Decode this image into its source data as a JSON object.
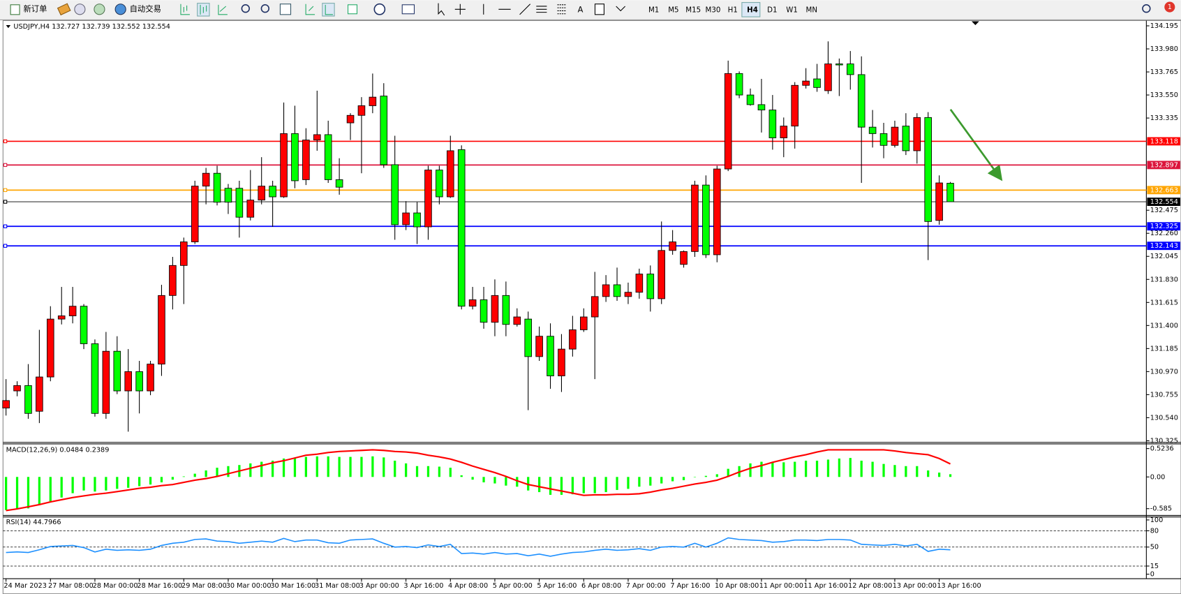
{
  "toolbar": {
    "new_order": "新订单",
    "auto_trading": "自动交易",
    "text_tool": "A",
    "timeframes": [
      "M1",
      "M5",
      "M15",
      "M30",
      "H1",
      "H4",
      "D1",
      "W1",
      "MN"
    ],
    "active_timeframe": 5,
    "notifications": "1"
  },
  "chart_data": [
    {
      "type": "candlestick",
      "title": "USDJPY,H4  132.727 132.739 132.552 132.554",
      "categories": [
        "24 Mar 2023",
        null,
        null,
        null,
        "27 Mar 08:00",
        null,
        null,
        null,
        "28 Mar 00:00",
        null,
        null,
        null,
        "28 Mar 16:00",
        null,
        null,
        null,
        "29 Mar 08:00",
        null,
        null,
        null,
        "30 Mar 00:00",
        null,
        null,
        null,
        "30 Mar 16:00",
        null,
        null,
        null,
        "31 Mar 08:00",
        null,
        null,
        null,
        "3 Apr 00:00",
        null,
        null,
        null,
        "3 Apr 16:00",
        null,
        null,
        null,
        "4 Apr 08:00",
        null,
        null,
        null,
        "5 Apr 00:00",
        null,
        null,
        null,
        "5 Apr 16:00",
        null,
        null,
        null,
        "6 Apr 08:00",
        null,
        null,
        null,
        "7 Apr 00:00",
        null,
        null,
        null,
        "7 Apr 16:00",
        null,
        null,
        null,
        "10 Apr 08:00",
        null,
        null,
        null,
        "11 Apr 00:00",
        null,
        null,
        null,
        "11 Apr 16:00",
        null,
        null,
        null,
        "12 Apr 08:00",
        null,
        null,
        null,
        "13 Apr 00:00",
        null,
        null,
        null,
        "13 Apr 16:00",
        null
      ],
      "open": [
        130.63,
        130.79,
        130.84,
        130.6,
        130.92,
        131.46,
        131.49,
        131.58,
        131.23,
        130.58,
        131.16,
        130.79,
        130.97,
        130.79,
        131.04,
        131.68,
        131.96,
        132.18,
        132.7,
        132.82,
        132.68,
        132.68,
        132.41,
        132.57,
        132.7,
        132.6,
        133.19,
        132.76,
        133.13,
        133.18,
        132.76,
        133.29,
        133.36,
        133.45,
        133.54,
        132.9,
        132.34,
        132.45,
        132.32,
        132.85,
        132.6,
        133.04,
        131.58,
        131.64,
        131.43,
        131.68,
        131.41,
        131.46,
        131.11,
        131.3,
        130.93,
        131.18,
        131.36,
        131.48,
        131.67,
        131.78,
        131.67,
        131.71,
        131.88,
        131.65,
        132.1,
        131.97,
        132.09,
        132.71,
        132.06,
        132.86,
        133.75,
        133.55,
        133.46,
        133.41,
        133.15,
        133.26,
        133.64,
        133.7,
        133.59,
        133.84,
        133.84,
        133.74,
        133.25,
        133.19,
        133.08,
        133.26,
        133.03,
        133.34,
        132.38,
        132.727
      ],
      "high": [
        130.9,
        130.88,
        131.04,
        131.36,
        131.58,
        131.76,
        131.76,
        131.6,
        131.27,
        131.34,
        131.3,
        131.18,
        131.07,
        131.07,
        131.78,
        132.04,
        132.22,
        132.75,
        132.87,
        132.89,
        132.72,
        132.75,
        132.85,
        132.97,
        132.75,
        133.48,
        133.45,
        133.24,
        133.59,
        133.31,
        132.96,
        133.38,
        133.53,
        133.75,
        133.66,
        133.17,
        132.56,
        132.55,
        132.89,
        132.89,
        133.17,
        133.08,
        131.76,
        131.76,
        131.83,
        131.81,
        131.56,
        131.53,
        131.39,
        131.42,
        131.32,
        131.49,
        131.56,
        131.9,
        131.87,
        131.94,
        131.8,
        131.93,
        131.96,
        132.37,
        132.29,
        132.1,
        132.75,
        132.8,
        132.89,
        133.87,
        133.77,
        133.61,
        133.7,
        133.55,
        133.34,
        133.67,
        133.8,
        133.84,
        134.05,
        133.89,
        133.96,
        133.91,
        133.41,
        133.29,
        133.31,
        133.38,
        133.38,
        133.39,
        132.8,
        132.739
      ],
      "low": [
        130.56,
        130.74,
        130.53,
        130.49,
        130.88,
        131.41,
        131.42,
        131.18,
        130.55,
        130.53,
        130.76,
        130.41,
        130.58,
        130.75,
        130.93,
        131.55,
        131.6,
        132.16,
        132.53,
        132.52,
        132.44,
        132.22,
        132.38,
        132.53,
        132.32,
        132.59,
        132.68,
        132.71,
        133.03,
        132.73,
        132.62,
        133.13,
        132.82,
        133.38,
        132.87,
        132.2,
        132.29,
        132.16,
        132.2,
        132.53,
        132.59,
        131.55,
        131.55,
        131.37,
        131.3,
        131.3,
        131.39,
        130.61,
        131.07,
        130.81,
        130.78,
        131.11,
        131.34,
        130.9,
        131.62,
        131.63,
        131.6,
        131.65,
        131.53,
        131.6,
        132.06,
        131.94,
        132.04,
        132.03,
        131.99,
        132.84,
        133.52,
        133.45,
        133.2,
        133.04,
        132.97,
        133.05,
        133.61,
        133.58,
        133.56,
        133.54,
        133.6,
        132.73,
        133.06,
        132.96,
        133.06,
        132.99,
        132.91,
        132.01,
        132.34,
        132.552
      ],
      "close": [
        130.7,
        130.84,
        130.58,
        130.92,
        131.46,
        131.49,
        131.58,
        131.23,
        130.58,
        131.16,
        130.79,
        130.97,
        130.79,
        131.04,
        131.68,
        131.96,
        132.18,
        132.7,
        132.82,
        132.55,
        132.55,
        132.41,
        132.57,
        132.7,
        132.6,
        133.19,
        132.75,
        133.13,
        133.18,
        132.76,
        132.69,
        133.36,
        133.45,
        133.53,
        132.9,
        132.34,
        132.45,
        132.32,
        132.85,
        132.6,
        133.03,
        131.58,
        131.64,
        131.43,
        131.68,
        131.41,
        131.48,
        131.11,
        131.3,
        130.93,
        131.18,
        131.36,
        131.48,
        131.67,
        131.78,
        131.67,
        131.71,
        131.88,
        131.65,
        132.1,
        132.18,
        132.09,
        132.71,
        132.06,
        132.86,
        133.75,
        133.55,
        133.46,
        133.41,
        133.15,
        133.26,
        133.64,
        133.68,
        133.62,
        133.84,
        133.83,
        133.74,
        133.25,
        133.19,
        133.08,
        133.25,
        133.03,
        133.34,
        132.37,
        132.73,
        132.554
      ],
      "up_color": "#ff0000",
      "down_color": "#00ff00",
      "ylim": [
        130.31,
        134.244
      ],
      "yticks": [
        134.195,
        {
          "value": 133.98,
          "label": "133.980"
        },
        133.765,
        {
          "value": 133.55,
          "label": "133.550"
        },
        133.335,
        132.475,
        {
          "value": 132.26,
          "label": "132.260"
        },
        132.045,
        {
          "value": 131.83,
          "label": "131.830"
        },
        131.615,
        {
          "value": 131.4,
          "label": "131.400"
        },
        131.185,
        {
          "value": 130.97,
          "label": "130.970"
        },
        130.755,
        {
          "value": 130.54,
          "label": "130.540"
        },
        130.325
      ],
      "hlines": [
        {
          "value": 133.118,
          "color": "#ff0000"
        },
        {
          "value": 132.897,
          "color": "#dc143c"
        },
        {
          "value": 132.663,
          "color": "#ffa500"
        },
        {
          "value": 132.325,
          "color": "#0000ff"
        },
        {
          "value": 132.143,
          "color": "#0000ff"
        }
      ],
      "last_price": {
        "value": 132.554,
        "color": "#000000"
      }
    },
    {
      "type": "macd",
      "title": "MACD(12,26,9) 0.0484 0.2389",
      "histogram": {
        "color": "#00ff00",
        "values": [
          -0.61,
          -0.6,
          -0.58,
          -0.52,
          -0.45,
          -0.38,
          -0.3,
          -0.25,
          -0.27,
          -0.25,
          -0.22,
          -0.2,
          -0.17,
          -0.14,
          -0.1,
          -0.05,
          0.01,
          0.06,
          0.12,
          0.17,
          0.2,
          0.22,
          0.25,
          0.28,
          0.3,
          0.34,
          0.35,
          0.37,
          0.38,
          0.38,
          0.37,
          0.37,
          0.37,
          0.38,
          0.36,
          0.3,
          0.25,
          0.2,
          0.2,
          0.19,
          0.17,
          0.03,
          -0.05,
          -0.1,
          -0.12,
          -0.16,
          -0.18,
          -0.25,
          -0.28,
          -0.33,
          -0.33,
          -0.32,
          -0.3,
          -0.3,
          -0.28,
          -0.24,
          -0.22,
          -0.18,
          -0.16,
          -0.12,
          -0.08,
          -0.06,
          0.0,
          0.02,
          0.05,
          0.15,
          0.2,
          0.25,
          0.28,
          0.28,
          0.27,
          0.28,
          0.3,
          0.3,
          0.32,
          0.34,
          0.35,
          0.3,
          0.28,
          0.24,
          0.22,
          0.2,
          0.2,
          0.12,
          0.08,
          0.05
        ]
      },
      "signal": {
        "color": "#ff0000",
        "values": [
          -0.62,
          -0.59,
          -0.55,
          -0.51,
          -0.46,
          -0.42,
          -0.38,
          -0.35,
          -0.32,
          -0.3,
          -0.27,
          -0.24,
          -0.21,
          -0.19,
          -0.16,
          -0.14,
          -0.1,
          -0.06,
          -0.03,
          0.01,
          0.06,
          0.11,
          0.16,
          0.21,
          0.26,
          0.3,
          0.35,
          0.4,
          0.42,
          0.45,
          0.47,
          0.48,
          0.49,
          0.5,
          0.49,
          0.47,
          0.46,
          0.44,
          0.4,
          0.37,
          0.33,
          0.27,
          0.2,
          0.14,
          0.08,
          0.01,
          -0.07,
          -0.14,
          -0.18,
          -0.22,
          -0.26,
          -0.3,
          -0.34,
          -0.33,
          -0.33,
          -0.32,
          -0.32,
          -0.31,
          -0.28,
          -0.24,
          -0.21,
          -0.17,
          -0.13,
          -0.1,
          -0.06,
          0.01,
          0.09,
          0.16,
          0.21,
          0.27,
          0.32,
          0.37,
          0.41,
          0.46,
          0.5,
          0.5,
          0.5,
          0.5,
          0.5,
          0.5,
          0.48,
          0.45,
          0.43,
          0.41,
          0.34,
          0.24
        ]
      },
      "ylim": [
        -0.71,
        0.61
      ],
      "yticks": [
        0.5236,
        {
          "value": 0,
          "label": "0.00"
        },
        -0.585
      ]
    },
    {
      "type": "line",
      "title": "RSI(14) 44.7966",
      "color": "#1e90ff",
      "values": [
        40,
        41,
        40,
        45,
        51,
        52,
        53,
        49,
        41,
        46,
        44,
        45,
        44,
        46,
        53,
        57,
        59,
        64,
        65,
        61,
        60,
        57,
        59,
        61,
        59,
        66,
        60,
        63,
        63,
        58,
        57,
        63,
        64,
        65,
        57,
        50,
        51,
        49,
        54,
        51,
        55,
        38,
        39,
        37,
        40,
        37,
        38,
        34,
        37,
        33,
        37,
        40,
        41,
        44,
        46,
        44,
        45,
        47,
        44,
        50,
        51,
        50,
        57,
        50,
        57,
        67,
        64,
        63,
        62,
        59,
        60,
        63,
        63,
        62,
        64,
        64,
        63,
        55,
        54,
        53,
        55,
        52,
        55,
        42,
        46,
        45
      ],
      "ylim": [
        0,
        100
      ],
      "yticks": [
        100,
        80,
        50,
        15,
        0
      ],
      "levels": [
        80,
        50,
        15
      ]
    }
  ]
}
